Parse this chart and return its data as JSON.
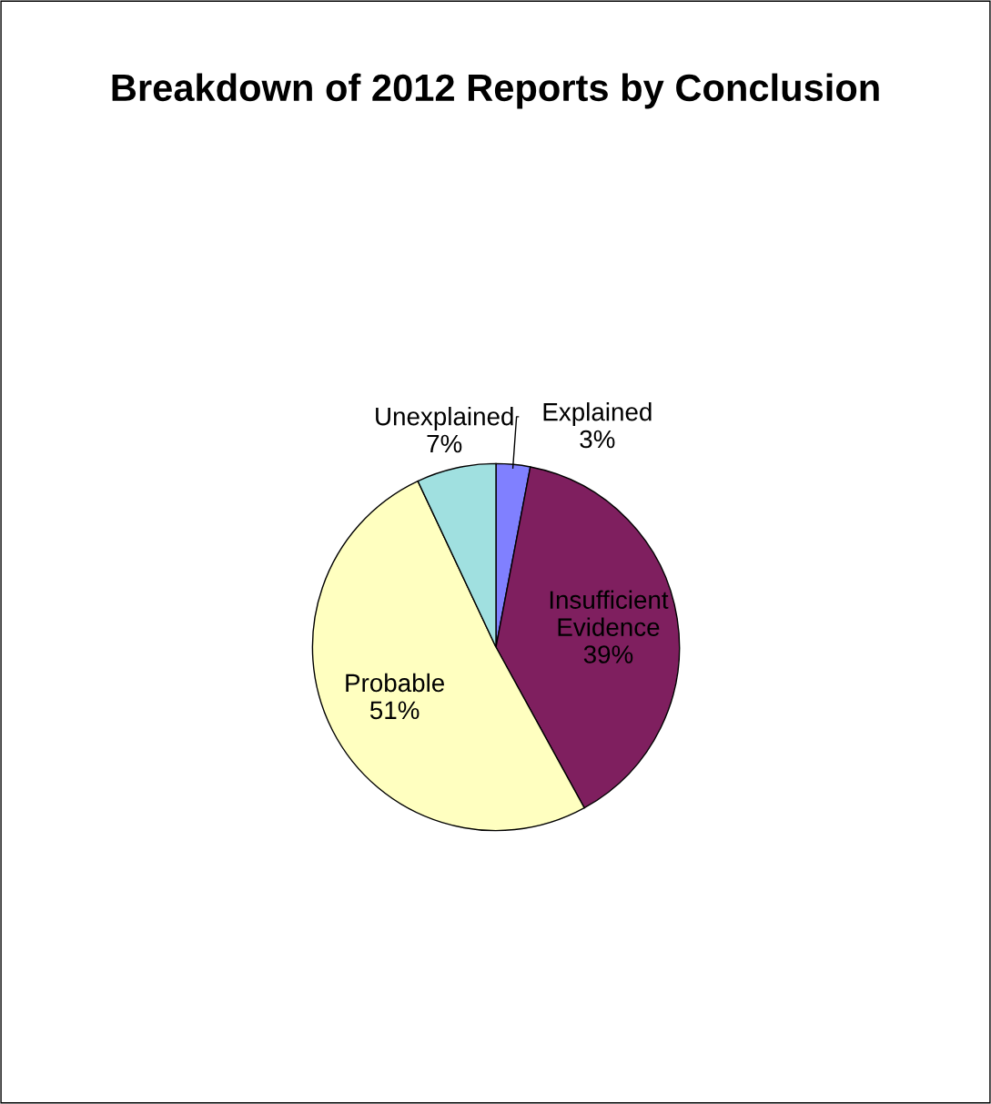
{
  "chart_data": {
    "type": "pie",
    "title": "Breakdown of 2012 Reports by Conclusion",
    "categories": [
      "Explained",
      "Insufficient Evidence",
      "Probable",
      "Unexplained"
    ],
    "values": [
      3,
      39,
      51,
      7
    ],
    "value_labels": [
      "3%",
      "39%",
      "51%",
      "7%"
    ],
    "colors": [
      "#8080ff",
      "#7f1f5f",
      "#ffffc0",
      "#a0e0e0"
    ],
    "legend": false
  }
}
